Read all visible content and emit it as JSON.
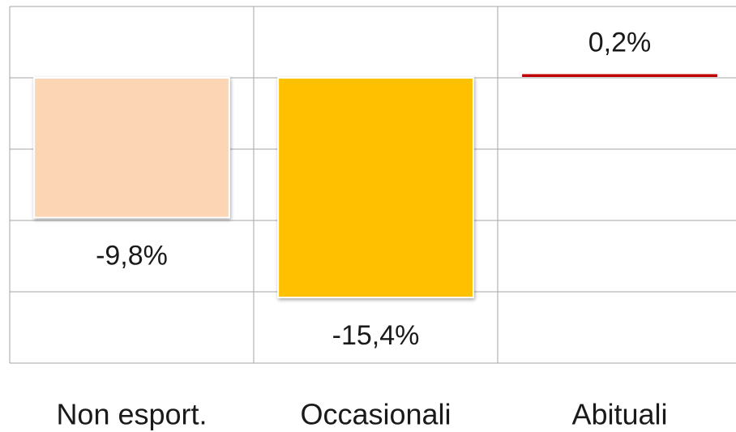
{
  "chart_data": {
    "type": "bar",
    "categories": [
      "Non esport.",
      "Occasionali",
      "Abituali"
    ],
    "values": [
      -9.8,
      -15.4,
      0.2
    ],
    "value_labels": [
      "-9,8%",
      "-15,4%",
      "0,2%"
    ],
    "colors": [
      "#fcd5b5",
      "#ffc000",
      "#c00000"
    ],
    "ylim": [
      -20,
      5
    ],
    "yticks": [
      -20,
      -15,
      -10,
      -5,
      0,
      5
    ],
    "grid": true
  }
}
